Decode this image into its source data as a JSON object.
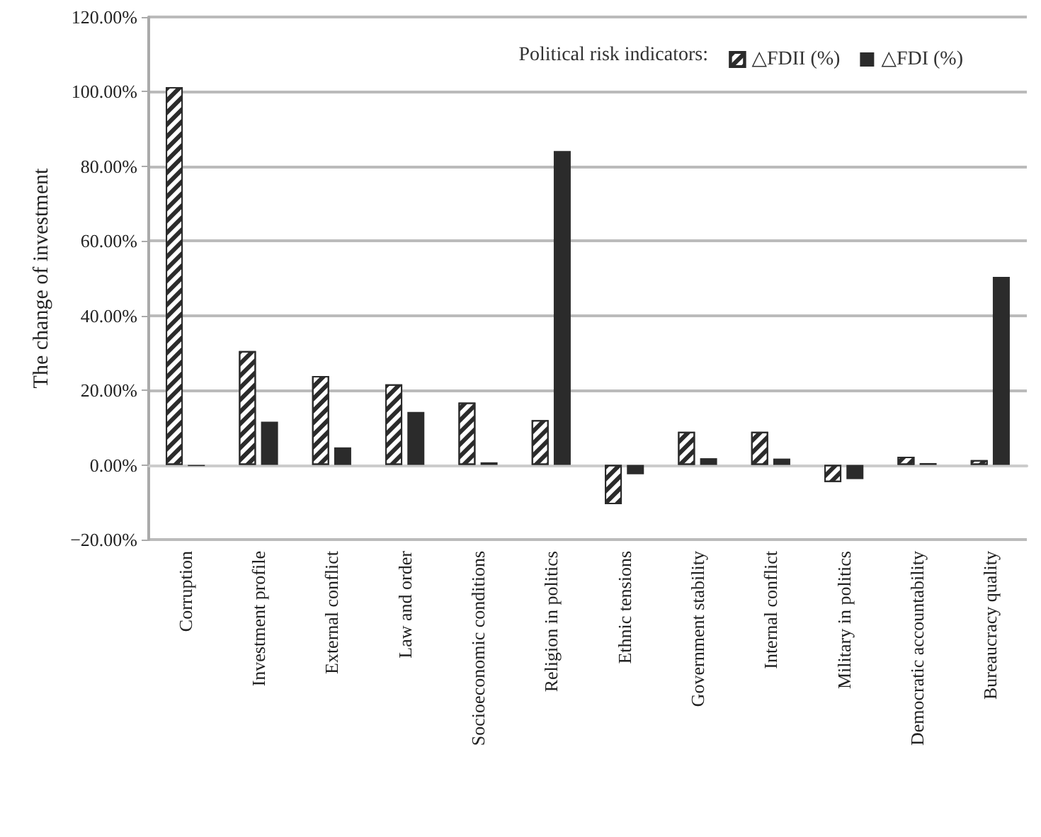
{
  "chart_data": {
    "type": "bar",
    "ylabel": "The change of investment",
    "legend_title": "Political risk indicators:",
    "categories": [
      "Corruption",
      "Investment profile",
      "External conflict",
      "Law and order",
      "Socioeconomic conditions",
      "Religion in politics",
      "Ethnic tensions",
      "Government stability",
      "Internal conflict",
      "Military in politics",
      "Democratic accountability",
      "Bureaucracy quality"
    ],
    "series": [
      {
        "name": "△FDII (%)",
        "color": "#2b2b2b",
        "values": [
          101.2,
          30.5,
          23.8,
          21.6,
          16.7,
          12.0,
          -10.5,
          8.9,
          8.9,
          -4.6,
          2.2,
          1.3
        ]
      },
      {
        "name": "△FDI (%)",
        "color": "#2b2b2b",
        "values": [
          -0.3,
          11.6,
          4.7,
          14.2,
          0.7,
          84.1,
          -2.5,
          1.8,
          1.7,
          -3.8,
          0.5,
          50.4
        ]
      }
    ],
    "ylim": [
      -20,
      120
    ],
    "yticks": [
      {
        "value": -20,
        "label": "−20.00%"
      },
      {
        "value": 0,
        "label": "0.00%"
      },
      {
        "value": 20,
        "label": "20.00%"
      },
      {
        "value": 40,
        "label": "40.00%"
      },
      {
        "value": 60,
        "label": "60.00%"
      },
      {
        "value": 80,
        "label": "80.00%"
      },
      {
        "value": 100,
        "label": "100.00%"
      },
      {
        "value": 120,
        "label": "120.00%"
      }
    ],
    "grid": "y",
    "legend": "top right"
  }
}
